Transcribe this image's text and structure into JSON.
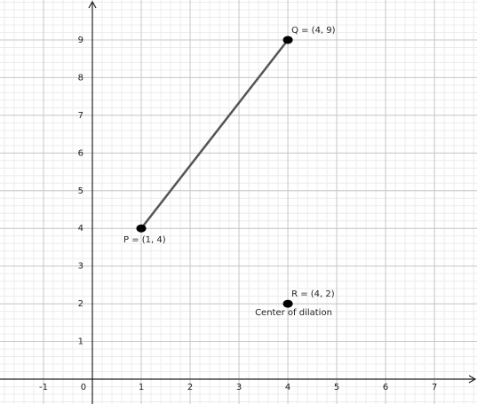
{
  "chart_data": {
    "type": "geometry",
    "points": [
      {
        "label": "P = (1, 4)",
        "x": 1,
        "y": 4
      },
      {
        "label": "Q = (4, 9)",
        "x": 4,
        "y": 9
      },
      {
        "label": "R = (4, 2)",
        "x": 4,
        "y": 2,
        "annotation": "Center of dilation"
      }
    ],
    "segment_color": "#555555",
    "point_color": "#000000",
    "xlim": [
      -1.89,
      7.87
    ],
    "ylim": [
      -0.66,
      10.06
    ],
    "xticks": [
      -1,
      0,
      1,
      2,
      3,
      4,
      5,
      6,
      7
    ],
    "yticks": [
      1,
      2,
      3,
      4,
      5,
      6,
      7,
      8,
      9
    ],
    "grid": true,
    "minor_grid_divisions": 5
  }
}
